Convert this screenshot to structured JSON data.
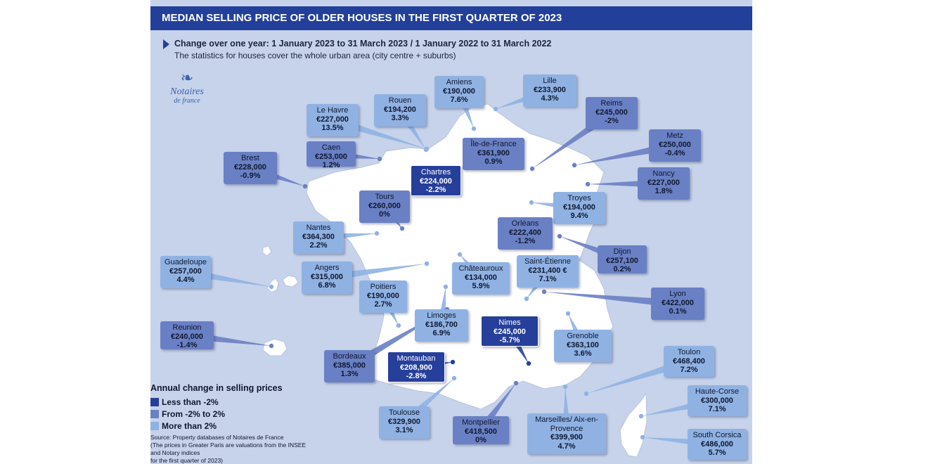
{
  "header": {
    "title": "MEDIAN SELLING PRICE OF OLDER HOUSES IN THE FIRST QUARTER OF 2023",
    "subtitle": "Change over one year: 1 January 2023 to 31 March 2023 / 1 January 2022 to 31 March 2022",
    "subtitle2": "The statistics for houses cover the whole urban area (city centre + suburbs)"
  },
  "logo": {
    "mark": "❧",
    "name": "Notaires",
    "sub": "de france"
  },
  "colors": {
    "light": "#8fb2e3",
    "mid": "#6a80c4",
    "dark": "#263f9a",
    "land": "#ffffff",
    "background": "#c7d3ea",
    "title_bar": "#22409a"
  },
  "legend": {
    "title": "Annual change in selling prices",
    "items": [
      {
        "label": "Less than -2%",
        "color": "#263f9a"
      },
      {
        "label": "From -2% to 2%",
        "color": "#6a80c4"
      },
      {
        "label": "More than 2%",
        "color": "#8fb2e3"
      }
    ]
  },
  "source": {
    "line1": "Source: Property databases of Notaires de France",
    "line2": "(The prices in Greater Paris are valuations from the INSEE and Notary indices",
    "line3": "for the first quarter of 2023)"
  },
  "cities": [
    {
      "name": "Amiens",
      "price": "€190,000",
      "change": "7.6%",
      "cls": "light"
    },
    {
      "name": "Lille",
      "price": "€233,900",
      "change": "4.3%",
      "cls": "light"
    },
    {
      "name": "Rouen",
      "price": "€194,200",
      "change": "3.3%",
      "cls": "light"
    },
    {
      "name": "Le Havre",
      "price": "€227,000",
      "change": "13.5%",
      "cls": "light"
    },
    {
      "name": "Reims",
      "price": "€245,000",
      "change": "-2%",
      "cls": "mid"
    },
    {
      "name": "Caen",
      "price": "€253,000",
      "change": "1.2%",
      "cls": "mid"
    },
    {
      "name": "Île-de-France",
      "price": "€361,900",
      "change": "0.9%",
      "cls": "mid"
    },
    {
      "name": "Metz",
      "price": "€250,000",
      "change": "-0.4%",
      "cls": "mid"
    },
    {
      "name": "Brest",
      "price": "€228,000",
      "change": "-0.9%",
      "cls": "mid"
    },
    {
      "name": "Chartres",
      "price": "€224,000",
      "change": "-2.2%",
      "cls": "dark"
    },
    {
      "name": "Nancy",
      "price": "€227,000",
      "change": "1.8%",
      "cls": "mid"
    },
    {
      "name": "Tours",
      "price": "€260,000",
      "change": "0%",
      "cls": "mid"
    },
    {
      "name": "Troyes",
      "price": "€194,000",
      "change": "9.4%",
      "cls": "light"
    },
    {
      "name": "Orléans",
      "price": "€222,400",
      "change": "-1.2%",
      "cls": "mid"
    },
    {
      "name": "Nantes",
      "price": "€364,300",
      "change": "2.2%",
      "cls": "light"
    },
    {
      "name": "Dijon",
      "price": "€257,100",
      "change": "0.2%",
      "cls": "mid"
    },
    {
      "name": "Guadeloupe",
      "price": "€257,000",
      "change": "4.4%",
      "cls": "light"
    },
    {
      "name": "Saint-Étienne",
      "price": "€231,400 €",
      "change": "7.1%",
      "cls": "light"
    },
    {
      "name": "Châteauroux",
      "price": "€134,000",
      "change": "5.9%",
      "cls": "light"
    },
    {
      "name": "Angers",
      "price": "€315,000",
      "change": "6.8%",
      "cls": "light"
    },
    {
      "name": "Poitiers",
      "price": "€190,000",
      "change": "2.7%",
      "cls": "light"
    },
    {
      "name": "Lyon",
      "price": "€422,000",
      "change": "0.1%",
      "cls": "mid"
    },
    {
      "name": "Limoges",
      "price": "€186,700",
      "change": "6.9%",
      "cls": "light"
    },
    {
      "name": "Nimes",
      "price": "€245,000",
      "change": "-5.7%",
      "cls": "dark"
    },
    {
      "name": "Reunion",
      "price": "€240,000",
      "change": "-1.4%",
      "cls": "mid"
    },
    {
      "name": "Grenoble",
      "price": "€363,100",
      "change": "3.6%",
      "cls": "light"
    },
    {
      "name": "Toulon",
      "price": "€468,400",
      "change": "7.2%",
      "cls": "light"
    },
    {
      "name": "Bordeaux",
      "price": "€385,000",
      "change": "1.3%",
      "cls": "mid"
    },
    {
      "name": "Montauban",
      "price": "€208,900",
      "change": "-2.8%",
      "cls": "dark"
    },
    {
      "name": "Haute-Corse",
      "price": "€300,000",
      "change": "7.1%",
      "cls": "light"
    },
    {
      "name": "Toulouse",
      "price": "€329,900",
      "change": "3.1%",
      "cls": "light"
    },
    {
      "name": "Montpellier",
      "price": "€418,500",
      "change": "0%",
      "cls": "mid"
    },
    {
      "name": "Marseilles/ Aix-en-Provence",
      "price": "€399,900",
      "change": "4.7%",
      "cls": "light"
    },
    {
      "name": "South Corsica",
      "price": "€486,000",
      "change": "5.7%",
      "cls": "light"
    }
  ]
}
